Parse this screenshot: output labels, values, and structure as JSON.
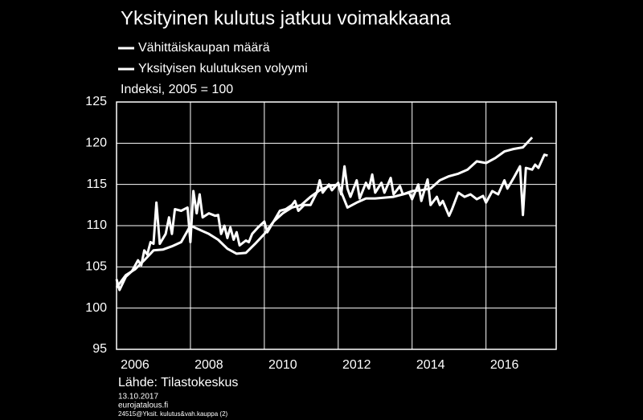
{
  "chart_data": {
    "type": "line",
    "title": "Yksityinen kulutus jatkuu voimakkaana",
    "y_label": "Indeksi, 2005 = 100",
    "source": "Lähde: Tilastokeskus",
    "date": "13.10.2017",
    "site": "eurojatalous.fi",
    "code": "24515@Yksit. kulutus&vah.kauppa (2)",
    "xlim": [
      2006,
      2017.9
    ],
    "xticks": [
      2006,
      2008,
      2010,
      2012,
      2014,
      2016
    ],
    "ylim": [
      95,
      125
    ],
    "yticks": [
      95,
      100,
      105,
      110,
      115,
      120,
      125
    ],
    "grid": true,
    "series": [
      {
        "name": "Vähittäiskaupan määrä",
        "color": "#ffffff",
        "x": [
          2006.0,
          2006.08,
          2006.25,
          2006.42,
          2006.58,
          2006.67,
          2006.75,
          2006.83,
          2006.92,
          2007.0,
          2007.08,
          2007.17,
          2007.33,
          2007.42,
          2007.5,
          2007.58,
          2007.75,
          2007.92,
          2008.0,
          2008.08,
          2008.17,
          2008.25,
          2008.33,
          2008.5,
          2008.67,
          2008.75,
          2008.83,
          2008.92,
          2009.0,
          2009.08,
          2009.17,
          2009.25,
          2009.33,
          2009.5,
          2009.58,
          2009.67,
          2009.83,
          2010.0,
          2010.08,
          2010.25,
          2010.42,
          2010.58,
          2010.75,
          2010.83,
          2010.92,
          2011.08,
          2011.25,
          2011.42,
          2011.5,
          2011.58,
          2011.75,
          2011.83,
          2012.0,
          2012.08,
          2012.17,
          2012.25,
          2012.33,
          2012.5,
          2012.58,
          2012.75,
          2012.83,
          2012.92,
          2013.0,
          2013.17,
          2013.25,
          2013.42,
          2013.5,
          2013.67,
          2013.75,
          2013.92,
          2014.0,
          2014.17,
          2014.25,
          2014.42,
          2014.5,
          2014.67,
          2014.75,
          2014.83,
          2015.0,
          2015.08,
          2015.25,
          2015.42,
          2015.58,
          2015.75,
          2015.92,
          2016.0,
          2016.17,
          2016.33,
          2016.5,
          2016.58,
          2016.75,
          2016.92,
          2017.0,
          2017.08,
          2017.25,
          2017.33,
          2017.42,
          2017.58,
          2017.67
        ],
        "values": [
          103.5,
          102.2,
          103.8,
          104.5,
          105.8,
          105.2,
          107,
          106.5,
          108,
          107.8,
          112.8,
          107.8,
          109,
          111,
          109,
          112,
          111.8,
          112.2,
          108,
          114.2,
          111.5,
          113.8,
          111,
          111.5,
          111.2,
          111.3,
          109,
          110,
          108.5,
          109.8,
          108.3,
          109.2,
          107.6,
          108.2,
          108,
          109,
          109.8,
          110.5,
          109.2,
          110.5,
          111.8,
          112,
          112.5,
          113,
          111.8,
          112.5,
          112.5,
          114,
          115.5,
          114,
          115,
          114.3,
          115.2,
          113.8,
          117.2,
          114.5,
          113.5,
          115.5,
          113.3,
          115.2,
          114.5,
          116.2,
          114,
          115.2,
          114,
          115.8,
          113.8,
          114.8,
          113.8,
          114,
          113.2,
          115,
          113,
          115.6,
          112.5,
          113.5,
          112.5,
          113,
          111.2,
          112,
          114,
          113.5,
          113.8,
          113.2,
          113.6,
          112.8,
          114.2,
          113.8,
          115.5,
          114.5,
          115.8,
          117.2,
          111.3,
          117,
          116.8,
          117.4,
          117,
          118.6,
          118.5
        ]
      },
      {
        "name": "Yksityisen kulutuksen volyymi",
        "color": "#ffffff",
        "x": [
          2006.0,
          2006.25,
          2006.5,
          2006.75,
          2007.0,
          2007.25,
          2007.5,
          2007.75,
          2008.0,
          2008.25,
          2008.5,
          2008.75,
          2009.0,
          2009.25,
          2009.5,
          2009.75,
          2010.0,
          2010.25,
          2010.5,
          2010.75,
          2011.0,
          2011.25,
          2011.5,
          2011.75,
          2012.0,
          2012.25,
          2012.5,
          2012.75,
          2013.0,
          2013.25,
          2013.5,
          2013.75,
          2014.0,
          2014.25,
          2014.5,
          2014.75,
          2015.0,
          2015.25,
          2015.5,
          2015.75,
          2016.0,
          2016.25,
          2016.5,
          2016.75,
          2017.0,
          2017.25
        ],
        "values": [
          102.5,
          104,
          104.7,
          105.8,
          107,
          107.1,
          107.5,
          108,
          110,
          109.5,
          109,
          108.3,
          107.2,
          106.6,
          106.7,
          107.8,
          109,
          110.5,
          111.5,
          112.2,
          112.5,
          113.5,
          114.3,
          114.8,
          115,
          112.2,
          112.8,
          113.3,
          113.3,
          113.4,
          113.5,
          113.8,
          114.2,
          114.3,
          114.5,
          115.5,
          116,
          116.3,
          116.8,
          117.8,
          117.6,
          118.2,
          119,
          119.3,
          119.5,
          120.7
        ]
      }
    ]
  }
}
